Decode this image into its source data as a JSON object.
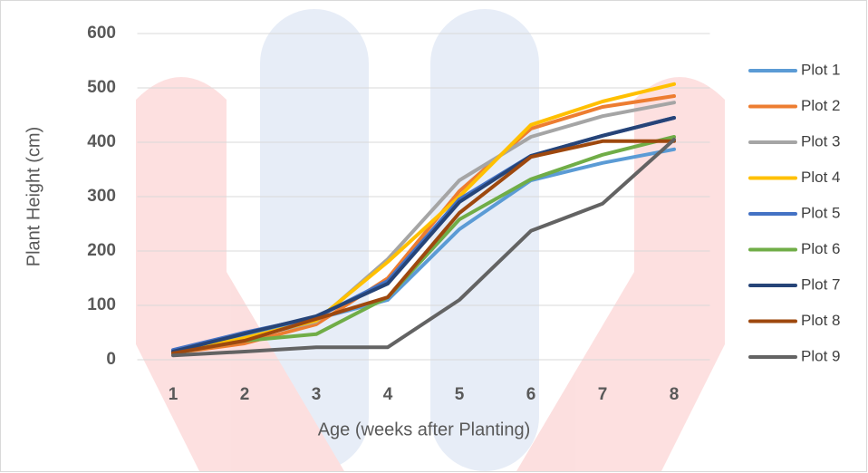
{
  "chart_data": {
    "type": "line",
    "x_label": "Age (weeks after Planting)",
    "y_label": "Plant Height (cm)",
    "categories": [
      "1",
      "2",
      "3",
      "4",
      "5",
      "6",
      "7",
      "8"
    ],
    "ylim": [
      0,
      600
    ],
    "yticks": [
      0,
      100,
      200,
      300,
      400,
      500,
      600
    ],
    "grid": true,
    "series": [
      {
        "name": "Plot 1",
        "color": "#5b9bd5",
        "values": [
          15,
          45,
          75,
          110,
          240,
          330,
          362,
          387
        ]
      },
      {
        "name": "Plot 2",
        "color": "#ed7d31",
        "values": [
          12,
          30,
          65,
          150,
          310,
          425,
          465,
          485
        ]
      },
      {
        "name": "Plot 3",
        "color": "#a5a5a5",
        "values": [
          10,
          40,
          70,
          185,
          330,
          410,
          448,
          473
        ]
      },
      {
        "name": "Plot 4",
        "color": "#ffc000",
        "values": [
          12,
          40,
          72,
          180,
          300,
          432,
          475,
          507
        ]
      },
      {
        "name": "Plot 5",
        "color": "#4472c4",
        "values": [
          18,
          50,
          78,
          145,
          295,
          375,
          412,
          445
        ]
      },
      {
        "name": "Plot 6",
        "color": "#70ad47",
        "values": [
          12,
          35,
          47,
          115,
          258,
          332,
          377,
          410
        ]
      },
      {
        "name": "Plot 7",
        "color": "#264478",
        "values": [
          15,
          48,
          80,
          140,
          290,
          375,
          412,
          445
        ]
      },
      {
        "name": "Plot 8",
        "color": "#9e480e",
        "values": [
          12,
          35,
          75,
          115,
          270,
          373,
          402,
          402
        ]
      },
      {
        "name": "Plot 9",
        "color": "#636363",
        "values": [
          8,
          15,
          23,
          23,
          110,
          237,
          287,
          405
        ]
      }
    ]
  }
}
